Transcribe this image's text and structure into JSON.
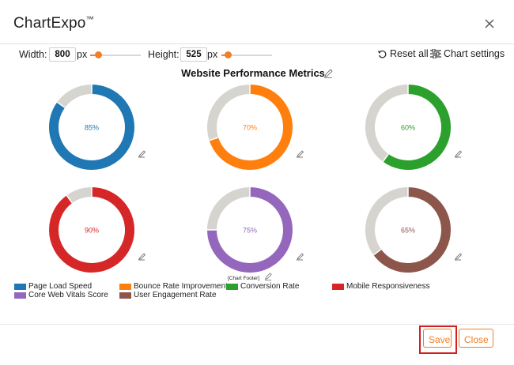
{
  "app": {
    "title": "ChartExpo",
    "tm": "™"
  },
  "controls": {
    "width_label": "Width:",
    "width_value": "800",
    "width_unit": "px",
    "height_label": "Height:",
    "height_value": "525",
    "height_unit": "px",
    "reset_label": "Reset all",
    "settings_label": "Chart settings"
  },
  "chart_data": {
    "type": "donut",
    "title": "Website Performance Metrics",
    "series": [
      {
        "name": "Page Load Speed",
        "value": 85,
        "label": "85%",
        "color": "#1f77b4"
      },
      {
        "name": "Bounce Rate Improvement",
        "value": 70,
        "label": "70%",
        "color": "#ff7f0e"
      },
      {
        "name": "Conversion Rate",
        "value": 60,
        "label": "60%",
        "color": "#2ca02c"
      },
      {
        "name": "Mobile Responsiveness",
        "value": 90,
        "label": "90%",
        "color": "#d62728"
      },
      {
        "name": "Core Web Vitals Score",
        "value": 75,
        "label": "75%",
        "color": "#9467bd"
      },
      {
        "name": "User Engagement Rate",
        "value": 65,
        "label": "65%",
        "color": "#8c564b"
      }
    ],
    "remainder_color": "#d6d4ce",
    "footer": "[Chart Footer]",
    "legend": [
      {
        "name": "Page Load Speed",
        "color": "#1f77b4"
      },
      {
        "name": "Bounce Rate Improvement",
        "color": "#ff7f0e"
      },
      {
        "name": "Conversion Rate",
        "color": "#2ca02c"
      },
      {
        "name": "Mobile Responsiveness",
        "color": "#d62728"
      },
      {
        "name": "Core Web Vitals Score",
        "color": "#9467bd"
      },
      {
        "name": "User Engagement Rate",
        "color": "#8c564b"
      }
    ]
  },
  "buttons": {
    "save": "Save",
    "close": "Close"
  },
  "colors": {
    "accent": "#f07f2a",
    "save_highlight": "#d11f1f"
  }
}
